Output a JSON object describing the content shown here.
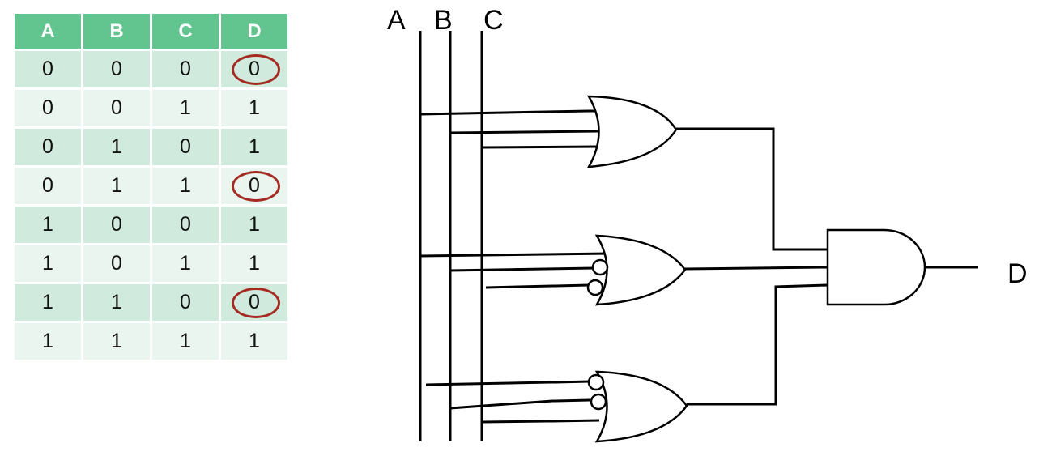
{
  "truth_table": {
    "headers": [
      "A",
      "B",
      "C",
      "D"
    ],
    "rows": [
      [
        "0",
        "0",
        "0",
        "0"
      ],
      [
        "0",
        "0",
        "1",
        "1"
      ],
      [
        "0",
        "1",
        "0",
        "1"
      ],
      [
        "0",
        "1",
        "1",
        "0"
      ],
      [
        "1",
        "0",
        "0",
        "1"
      ],
      [
        "1",
        "0",
        "1",
        "1"
      ],
      [
        "1",
        "1",
        "0",
        "0"
      ],
      [
        "1",
        "1",
        "1",
        "1"
      ]
    ],
    "circled_rows": [
      0,
      3,
      6
    ]
  },
  "circuit": {
    "inputs": [
      "A",
      "B",
      "C"
    ],
    "output": "D",
    "or_gates": [
      {
        "inverted_inputs": "none"
      },
      {
        "inverted_inputs": "B, C"
      },
      {
        "inverted_inputs": "A, B"
      }
    ],
    "final_gate": "AND"
  },
  "colors": {
    "header_green": "#62c48e",
    "row_dark": "#d0ebdd",
    "row_light": "#e9f5ee",
    "circle_red": "#a52a22"
  }
}
